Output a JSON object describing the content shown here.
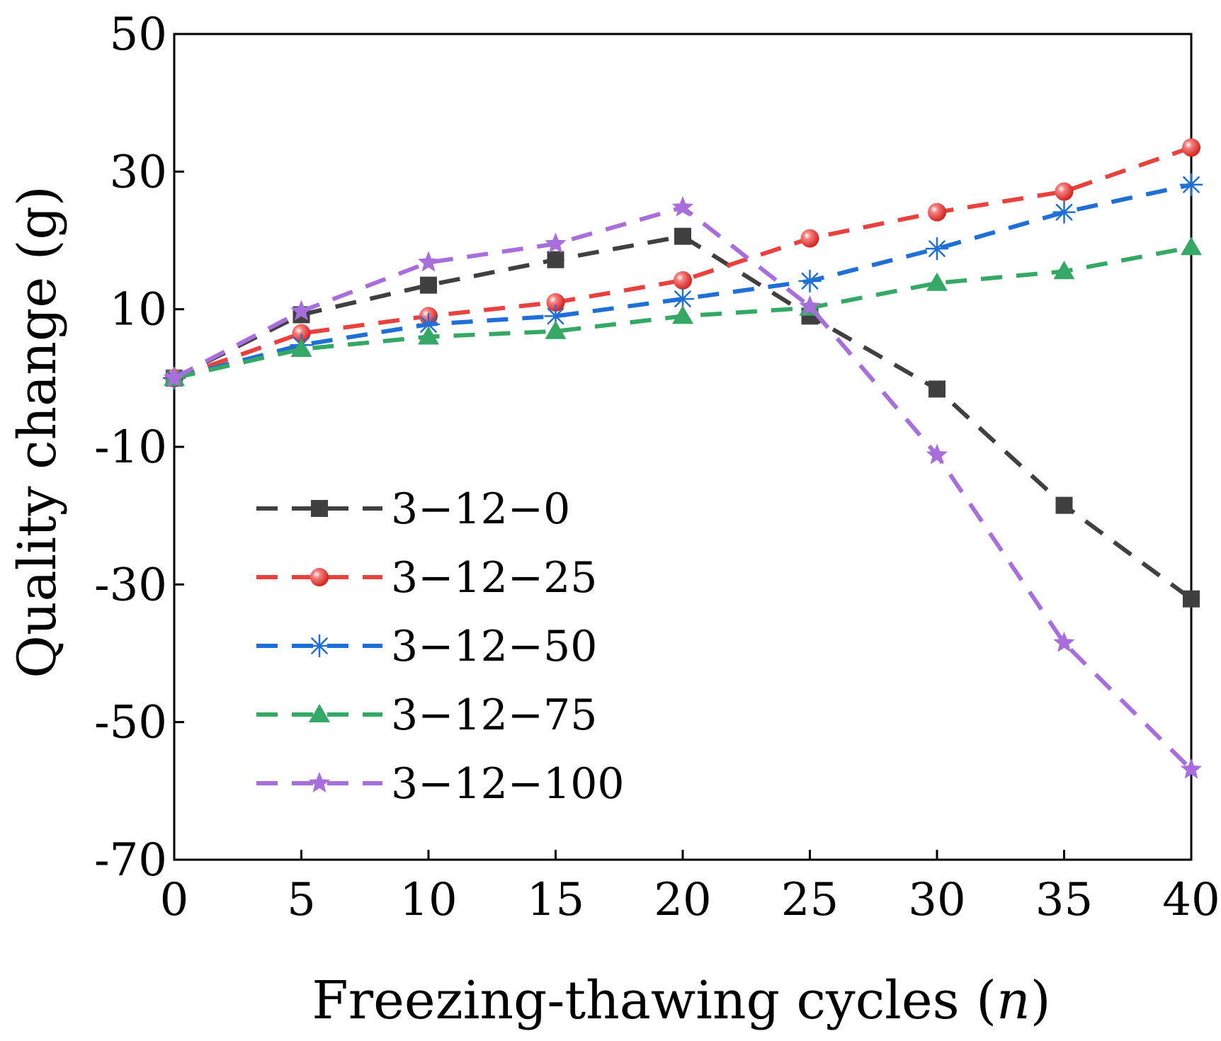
{
  "chart_data": {
    "type": "line",
    "title": "",
    "xlabel": "Freezing-thawing cycles (",
    "xlabel_var": "n",
    "xlabel_end": ")",
    "ylabel": "Quality change (g)",
    "xlim": [
      0,
      40
    ],
    "ylim": [
      -70,
      50
    ],
    "xticks": [
      0,
      5,
      10,
      15,
      20,
      25,
      30,
      35,
      40
    ],
    "yticks": [
      -70,
      -50,
      -30,
      -10,
      10,
      30,
      50
    ],
    "grid": false,
    "legend_position": "lower-left",
    "x": [
      0,
      5,
      10,
      15,
      20,
      25,
      30,
      35,
      40
    ],
    "series": [
      {
        "name": "3−12−0",
        "color": "#404040",
        "marker": "square",
        "values": [
          0,
          9.2,
          13.5,
          17.2,
          20.6,
          9,
          -1.6,
          -18.5,
          -32.1
        ]
      },
      {
        "name": "3−12−25",
        "color": "#e8413e",
        "marker": "circle",
        "values": [
          0,
          6.5,
          9,
          11,
          14.2,
          20.3,
          24.1,
          27.1,
          33.5
        ]
      },
      {
        "name": "3−12−50",
        "color": "#1f6fd6",
        "marker": "asterisk",
        "values": [
          0,
          4.8,
          7.8,
          9,
          11.5,
          14.1,
          18.8,
          24.1,
          28.1
        ]
      },
      {
        "name": "3−12−75",
        "color": "#35a866",
        "marker": "triangle",
        "values": [
          0,
          4.2,
          6,
          6.8,
          9,
          10.2,
          13.8,
          15.5,
          19
        ]
      },
      {
        "name": "3−12−100",
        "color": "#a86fdc",
        "marker": "star",
        "values": [
          0,
          9.7,
          16.8,
          19.5,
          24.8,
          10.4,
          -11.2,
          -38.5,
          -56.9
        ]
      }
    ]
  }
}
